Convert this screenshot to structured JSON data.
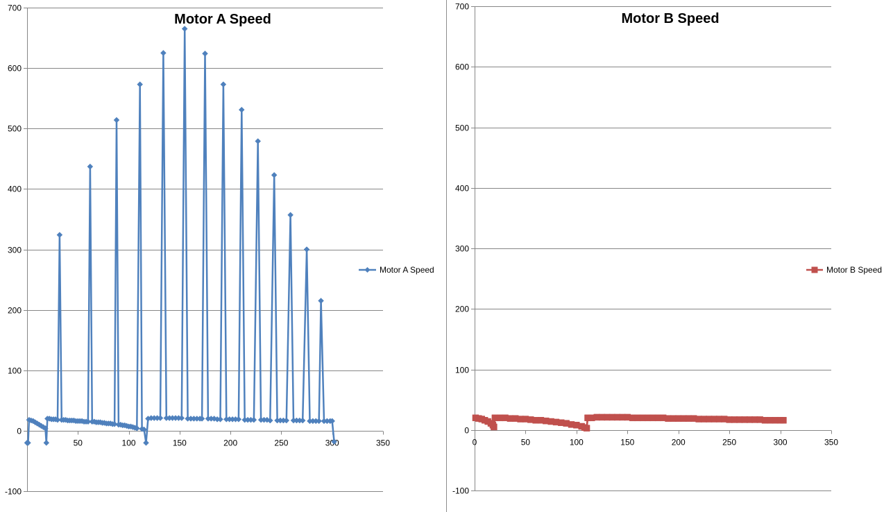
{
  "chart_data": [
    {
      "type": "line",
      "title": "Motor A Speed",
      "xlabel": "",
      "ylabel": "",
      "xlim": [
        0,
        350
      ],
      "ylim": [
        -100,
        700
      ],
      "x_ticks": [
        50,
        100,
        150,
        200,
        250,
        300,
        350
      ],
      "y_ticks": [
        -100,
        0,
        100,
        200,
        300,
        400,
        500,
        600,
        700
      ],
      "x_tick_labels": [
        "50",
        "100",
        "150",
        "200",
        "250",
        "300",
        "350"
      ],
      "y_tick_labels": [
        "-100",
        "0",
        "100",
        "200",
        "300",
        "400",
        "500",
        "600",
        "700"
      ],
      "grid": "horizontal",
      "legend_position": "right",
      "marker": "diamond",
      "color": "#4f81bd",
      "series": [
        {
          "name": "Motor A Speed",
          "points": [
            [
              0,
              -20
            ],
            [
              1,
              -20
            ],
            [
              2,
              18
            ],
            [
              4,
              17
            ],
            [
              6,
              16
            ],
            [
              8,
              14
            ],
            [
              10,
              12
            ],
            [
              12,
              10
            ],
            [
              14,
              8
            ],
            [
              16,
              6
            ],
            [
              18,
              4
            ],
            [
              19,
              -20
            ],
            [
              20,
              20
            ],
            [
              22,
              20
            ],
            [
              24,
              19
            ],
            [
              26,
              19
            ],
            [
              28,
              19
            ],
            [
              30,
              18
            ],
            [
              32,
              324
            ],
            [
              34,
              18
            ],
            [
              36,
              18
            ],
            [
              38,
              18
            ],
            [
              40,
              17
            ],
            [
              42,
              17
            ],
            [
              44,
              17
            ],
            [
              46,
              17
            ],
            [
              48,
              16
            ],
            [
              50,
              16
            ],
            [
              52,
              16
            ],
            [
              54,
              16
            ],
            [
              56,
              15
            ],
            [
              58,
              15
            ],
            [
              60,
              15
            ],
            [
              62,
              437
            ],
            [
              64,
              15
            ],
            [
              66,
              15
            ],
            [
              68,
              14
            ],
            [
              70,
              14
            ],
            [
              72,
              14
            ],
            [
              74,
              13
            ],
            [
              76,
              13
            ],
            [
              78,
              12
            ],
            [
              80,
              12
            ],
            [
              82,
              12
            ],
            [
              84,
              11
            ],
            [
              86,
              11
            ],
            [
              88,
              514
            ],
            [
              90,
              10
            ],
            [
              92,
              10
            ],
            [
              94,
              9
            ],
            [
              96,
              9
            ],
            [
              98,
              8
            ],
            [
              100,
              7
            ],
            [
              102,
              7
            ],
            [
              104,
              6
            ],
            [
              106,
              5
            ],
            [
              108,
              4
            ],
            [
              111,
              573
            ],
            [
              113,
              3
            ],
            [
              115,
              2
            ],
            [
              117,
              -20
            ],
            [
              119,
              20
            ],
            [
              122,
              21
            ],
            [
              125,
              21
            ],
            [
              128,
              21
            ],
            [
              131,
              21
            ],
            [
              134,
              625
            ],
            [
              137,
              21
            ],
            [
              140,
              21
            ],
            [
              143,
              21
            ],
            [
              146,
              21
            ],
            [
              149,
              21
            ],
            [
              152,
              21
            ],
            [
              155,
              665
            ],
            [
              158,
              20
            ],
            [
              161,
              20
            ],
            [
              164,
              20
            ],
            [
              167,
              20
            ],
            [
              170,
              20
            ],
            [
              172,
              20
            ],
            [
              175,
              624
            ],
            [
              178,
              20
            ],
            [
              181,
              20
            ],
            [
              184,
              20
            ],
            [
              187,
              19
            ],
            [
              190,
              19
            ],
            [
              193,
              573
            ],
            [
              196,
              19
            ],
            [
              199,
              19
            ],
            [
              202,
              19
            ],
            [
              205,
              19
            ],
            [
              208,
              19
            ],
            [
              211,
              531
            ],
            [
              214,
              18
            ],
            [
              217,
              18
            ],
            [
              220,
              18
            ],
            [
              223,
              18
            ],
            [
              227,
              479
            ],
            [
              230,
              18
            ],
            [
              233,
              18
            ],
            [
              236,
              18
            ],
            [
              239,
              17
            ],
            [
              243,
              423
            ],
            [
              246,
              17
            ],
            [
              249,
              17
            ],
            [
              252,
              17
            ],
            [
              255,
              17
            ],
            [
              259,
              357
            ],
            [
              262,
              17
            ],
            [
              265,
              17
            ],
            [
              268,
              17
            ],
            [
              271,
              17
            ],
            [
              275,
              300
            ],
            [
              278,
              16
            ],
            [
              281,
              16
            ],
            [
              284,
              16
            ],
            [
              287,
              16
            ],
            [
              289,
              215
            ],
            [
              292,
              16
            ],
            [
              295,
              16
            ],
            [
              298,
              16
            ],
            [
              300,
              16
            ],
            [
              302,
              -18
            ]
          ]
        }
      ]
    },
    {
      "type": "line",
      "title": "Motor B Speed",
      "xlabel": "",
      "ylabel": "",
      "xlim": [
        0,
        350
      ],
      "ylim": [
        -100,
        700
      ],
      "x_ticks": [
        0,
        50,
        100,
        150,
        200,
        250,
        300,
        350
      ],
      "y_ticks": [
        -100,
        0,
        100,
        200,
        300,
        400,
        500,
        600,
        700
      ],
      "x_tick_labels": [
        "0",
        "50",
        "100",
        "150",
        "200",
        "250",
        "300",
        "350"
      ],
      "y_tick_labels": [
        "-100",
        "0",
        "100",
        "200",
        "300",
        "400",
        "500",
        "600",
        "700"
      ],
      "grid": "horizontal",
      "legend_position": "right",
      "marker": "square",
      "color": "#c0504d",
      "series": [
        {
          "name": "Motor B Speed",
          "points": [
            [
              1,
              20
            ],
            [
              4,
              19
            ],
            [
              7,
              18
            ],
            [
              10,
              16
            ],
            [
              13,
              14
            ],
            [
              16,
              11
            ],
            [
              18,
              8
            ],
            [
              19,
              5
            ],
            [
              20,
              20
            ],
            [
              25,
              20
            ],
            [
              30,
              20
            ],
            [
              35,
              19
            ],
            [
              40,
              19
            ],
            [
              45,
              18
            ],
            [
              50,
              18
            ],
            [
              55,
              17
            ],
            [
              60,
              16
            ],
            [
              65,
              16
            ],
            [
              70,
              15
            ],
            [
              75,
              14
            ],
            [
              80,
              13
            ],
            [
              85,
              12
            ],
            [
              90,
              11
            ],
            [
              95,
              9
            ],
            [
              100,
              8
            ],
            [
              105,
              6
            ],
            [
              108,
              4
            ],
            [
              110,
              3
            ],
            [
              111,
              20
            ],
            [
              115,
              20
            ],
            [
              120,
              21
            ],
            [
              125,
              21
            ],
            [
              130,
              21
            ],
            [
              135,
              21
            ],
            [
              140,
              21
            ],
            [
              145,
              21
            ],
            [
              150,
              21
            ],
            [
              155,
              20
            ],
            [
              160,
              20
            ],
            [
              165,
              20
            ],
            [
              170,
              20
            ],
            [
              175,
              20
            ],
            [
              180,
              20
            ],
            [
              185,
              20
            ],
            [
              190,
              19
            ],
            [
              195,
              19
            ],
            [
              200,
              19
            ],
            [
              205,
              19
            ],
            [
              210,
              19
            ],
            [
              215,
              19
            ],
            [
              220,
              18
            ],
            [
              225,
              18
            ],
            [
              230,
              18
            ],
            [
              235,
              18
            ],
            [
              240,
              18
            ],
            [
              245,
              18
            ],
            [
              250,
              17
            ],
            [
              255,
              17
            ],
            [
              260,
              17
            ],
            [
              265,
              17
            ],
            [
              270,
              17
            ],
            [
              275,
              17
            ],
            [
              280,
              17
            ],
            [
              285,
              16
            ],
            [
              290,
              16
            ],
            [
              295,
              16
            ],
            [
              300,
              16
            ],
            [
              303,
              16
            ]
          ]
        }
      ]
    }
  ]
}
